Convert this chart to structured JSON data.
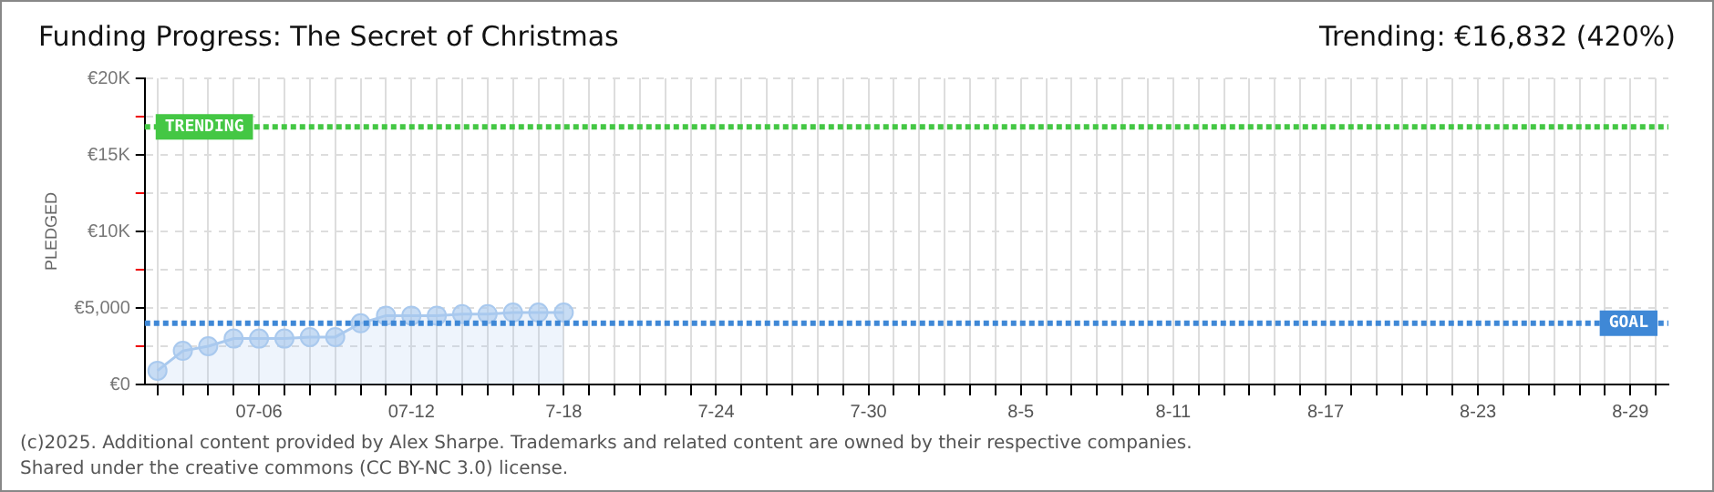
{
  "chart_data": {
    "type": "area",
    "title": "Funding Progress: The Secret of Christmas",
    "subtitle": "Trending: €16,832 (420%)",
    "ylabel": "PLEDGED",
    "categories": [
      null,
      null,
      null,
      null,
      "07-06",
      null,
      null,
      null,
      null,
      null,
      "07-12",
      null,
      null,
      null,
      null,
      null,
      "7-18",
      null,
      null,
      null,
      null,
      null,
      "7-24",
      null,
      null,
      null,
      null,
      null,
      "7-30",
      null,
      null,
      null,
      null,
      null,
      "8-5",
      null,
      null,
      null,
      null,
      null,
      "8-11",
      null,
      null,
      null,
      null,
      null,
      "8-17",
      null,
      null,
      null,
      null,
      null,
      "8-23",
      null,
      null,
      null,
      null,
      null,
      "8-29",
      null
    ],
    "series": [
      {
        "color": "#a9c9ee",
        "values": [
          900,
          2200,
          2500,
          3000,
          3000,
          3000,
          3100,
          3100,
          4000,
          4500,
          4500,
          4500,
          4600,
          4600,
          4700,
          4700,
          4700,
          null,
          null,
          null,
          null,
          null,
          null,
          null,
          null,
          null,
          null,
          null,
          null,
          null,
          null,
          null,
          null,
          null,
          null,
          null,
          null,
          null,
          null,
          null,
          null,
          null,
          null,
          null,
          null,
          null,
          null,
          null,
          null,
          null,
          null,
          null,
          null,
          null,
          null,
          null,
          null,
          null,
          null,
          null
        ]
      }
    ],
    "ylim": [
      0,
      20000
    ],
    "yticks": [
      {
        "value": 0,
        "label": "€0"
      },
      {
        "value": 2500,
        "label": null
      },
      {
        "value": 5000,
        "label": "€5,000"
      },
      {
        "value": 7500,
        "label": null
      },
      {
        "value": 10000,
        "label": "€10K"
      },
      {
        "value": 12500,
        "label": null
      },
      {
        "value": 15000,
        "label": "€15K"
      },
      {
        "value": 17500,
        "label": null
      },
      {
        "value": 20000,
        "label": "€20K"
      }
    ],
    "ref_lines": [
      {
        "axis": "y",
        "value": 16832,
        "label": "TRENDING",
        "color": "#44c744",
        "line_style": "dotted"
      },
      {
        "axis": "y",
        "value": 4000,
        "label": "GOAL",
        "color": "#3f88d6",
        "line_style": "dotted"
      }
    ],
    "annotations": [
      "(c)2025. Additional content provided by Alex Sharpe. Trademarks and related content are owned by their respective companies.",
      "Shared under the creative commons (CC BY-NC 3.0) license."
    ],
    "grid": true,
    "legend": false,
    "marker": "circle"
  }
}
